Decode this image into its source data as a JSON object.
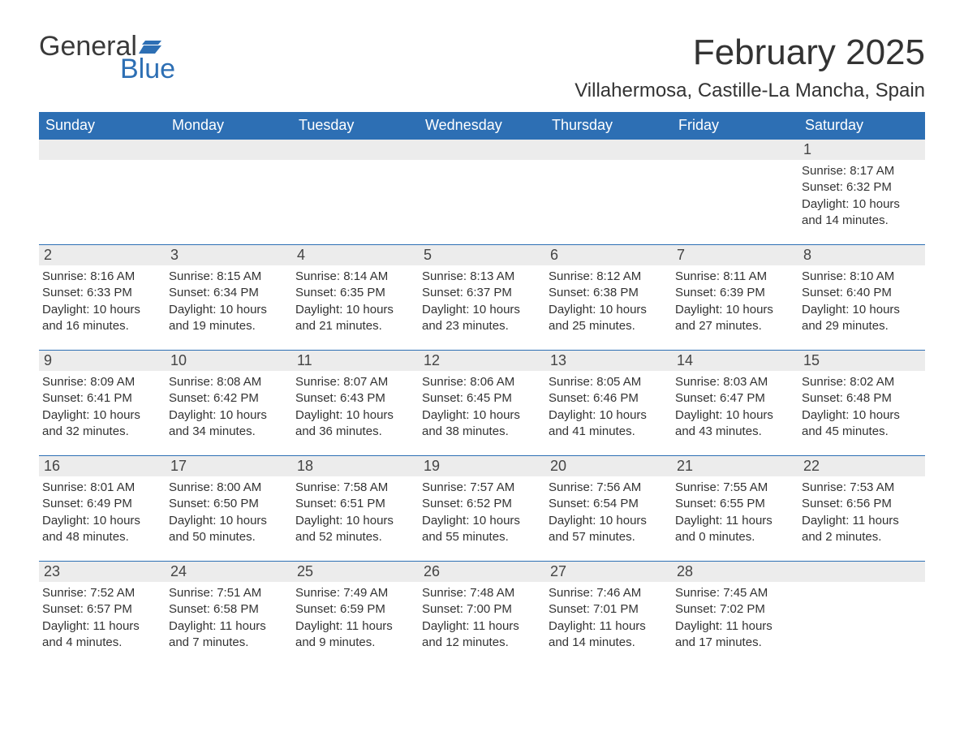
{
  "logo": {
    "text1": "General",
    "text2": "Blue",
    "flag_color": "#2d6fb4"
  },
  "title": "February 2025",
  "location": "Villahermosa, Castille-La Mancha, Spain",
  "colors": {
    "header_bg": "#2d6fb4",
    "header_text": "#ffffff",
    "daynum_bg": "#ececec",
    "row_border": "#2d6fb4",
    "body_text": "#333333"
  },
  "weekdays": [
    "Sunday",
    "Monday",
    "Tuesday",
    "Wednesday",
    "Thursday",
    "Friday",
    "Saturday"
  ],
  "weeks": [
    [
      null,
      null,
      null,
      null,
      null,
      null,
      {
        "n": "1",
        "sr": "Sunrise: 8:17 AM",
        "ss": "Sunset: 6:32 PM",
        "dl1": "Daylight: 10 hours",
        "dl2": "and 14 minutes."
      }
    ],
    [
      {
        "n": "2",
        "sr": "Sunrise: 8:16 AM",
        "ss": "Sunset: 6:33 PM",
        "dl1": "Daylight: 10 hours",
        "dl2": "and 16 minutes."
      },
      {
        "n": "3",
        "sr": "Sunrise: 8:15 AM",
        "ss": "Sunset: 6:34 PM",
        "dl1": "Daylight: 10 hours",
        "dl2": "and 19 minutes."
      },
      {
        "n": "4",
        "sr": "Sunrise: 8:14 AM",
        "ss": "Sunset: 6:35 PM",
        "dl1": "Daylight: 10 hours",
        "dl2": "and 21 minutes."
      },
      {
        "n": "5",
        "sr": "Sunrise: 8:13 AM",
        "ss": "Sunset: 6:37 PM",
        "dl1": "Daylight: 10 hours",
        "dl2": "and 23 minutes."
      },
      {
        "n": "6",
        "sr": "Sunrise: 8:12 AM",
        "ss": "Sunset: 6:38 PM",
        "dl1": "Daylight: 10 hours",
        "dl2": "and 25 minutes."
      },
      {
        "n": "7",
        "sr": "Sunrise: 8:11 AM",
        "ss": "Sunset: 6:39 PM",
        "dl1": "Daylight: 10 hours",
        "dl2": "and 27 minutes."
      },
      {
        "n": "8",
        "sr": "Sunrise: 8:10 AM",
        "ss": "Sunset: 6:40 PM",
        "dl1": "Daylight: 10 hours",
        "dl2": "and 29 minutes."
      }
    ],
    [
      {
        "n": "9",
        "sr": "Sunrise: 8:09 AM",
        "ss": "Sunset: 6:41 PM",
        "dl1": "Daylight: 10 hours",
        "dl2": "and 32 minutes."
      },
      {
        "n": "10",
        "sr": "Sunrise: 8:08 AM",
        "ss": "Sunset: 6:42 PM",
        "dl1": "Daylight: 10 hours",
        "dl2": "and 34 minutes."
      },
      {
        "n": "11",
        "sr": "Sunrise: 8:07 AM",
        "ss": "Sunset: 6:43 PM",
        "dl1": "Daylight: 10 hours",
        "dl2": "and 36 minutes."
      },
      {
        "n": "12",
        "sr": "Sunrise: 8:06 AM",
        "ss": "Sunset: 6:45 PM",
        "dl1": "Daylight: 10 hours",
        "dl2": "and 38 minutes."
      },
      {
        "n": "13",
        "sr": "Sunrise: 8:05 AM",
        "ss": "Sunset: 6:46 PM",
        "dl1": "Daylight: 10 hours",
        "dl2": "and 41 minutes."
      },
      {
        "n": "14",
        "sr": "Sunrise: 8:03 AM",
        "ss": "Sunset: 6:47 PM",
        "dl1": "Daylight: 10 hours",
        "dl2": "and 43 minutes."
      },
      {
        "n": "15",
        "sr": "Sunrise: 8:02 AM",
        "ss": "Sunset: 6:48 PM",
        "dl1": "Daylight: 10 hours",
        "dl2": "and 45 minutes."
      }
    ],
    [
      {
        "n": "16",
        "sr": "Sunrise: 8:01 AM",
        "ss": "Sunset: 6:49 PM",
        "dl1": "Daylight: 10 hours",
        "dl2": "and 48 minutes."
      },
      {
        "n": "17",
        "sr": "Sunrise: 8:00 AM",
        "ss": "Sunset: 6:50 PM",
        "dl1": "Daylight: 10 hours",
        "dl2": "and 50 minutes."
      },
      {
        "n": "18",
        "sr": "Sunrise: 7:58 AM",
        "ss": "Sunset: 6:51 PM",
        "dl1": "Daylight: 10 hours",
        "dl2": "and 52 minutes."
      },
      {
        "n": "19",
        "sr": "Sunrise: 7:57 AM",
        "ss": "Sunset: 6:52 PM",
        "dl1": "Daylight: 10 hours",
        "dl2": "and 55 minutes."
      },
      {
        "n": "20",
        "sr": "Sunrise: 7:56 AM",
        "ss": "Sunset: 6:54 PM",
        "dl1": "Daylight: 10 hours",
        "dl2": "and 57 minutes."
      },
      {
        "n": "21",
        "sr": "Sunrise: 7:55 AM",
        "ss": "Sunset: 6:55 PM",
        "dl1": "Daylight: 11 hours",
        "dl2": "and 0 minutes."
      },
      {
        "n": "22",
        "sr": "Sunrise: 7:53 AM",
        "ss": "Sunset: 6:56 PM",
        "dl1": "Daylight: 11 hours",
        "dl2": "and 2 minutes."
      }
    ],
    [
      {
        "n": "23",
        "sr": "Sunrise: 7:52 AM",
        "ss": "Sunset: 6:57 PM",
        "dl1": "Daylight: 11 hours",
        "dl2": "and 4 minutes."
      },
      {
        "n": "24",
        "sr": "Sunrise: 7:51 AM",
        "ss": "Sunset: 6:58 PM",
        "dl1": "Daylight: 11 hours",
        "dl2": "and 7 minutes."
      },
      {
        "n": "25",
        "sr": "Sunrise: 7:49 AM",
        "ss": "Sunset: 6:59 PM",
        "dl1": "Daylight: 11 hours",
        "dl2": "and 9 minutes."
      },
      {
        "n": "26",
        "sr": "Sunrise: 7:48 AM",
        "ss": "Sunset: 7:00 PM",
        "dl1": "Daylight: 11 hours",
        "dl2": "and 12 minutes."
      },
      {
        "n": "27",
        "sr": "Sunrise: 7:46 AM",
        "ss": "Sunset: 7:01 PM",
        "dl1": "Daylight: 11 hours",
        "dl2": "and 14 minutes."
      },
      {
        "n": "28",
        "sr": "Sunrise: 7:45 AM",
        "ss": "Sunset: 7:02 PM",
        "dl1": "Daylight: 11 hours",
        "dl2": "and 17 minutes."
      },
      null
    ]
  ]
}
